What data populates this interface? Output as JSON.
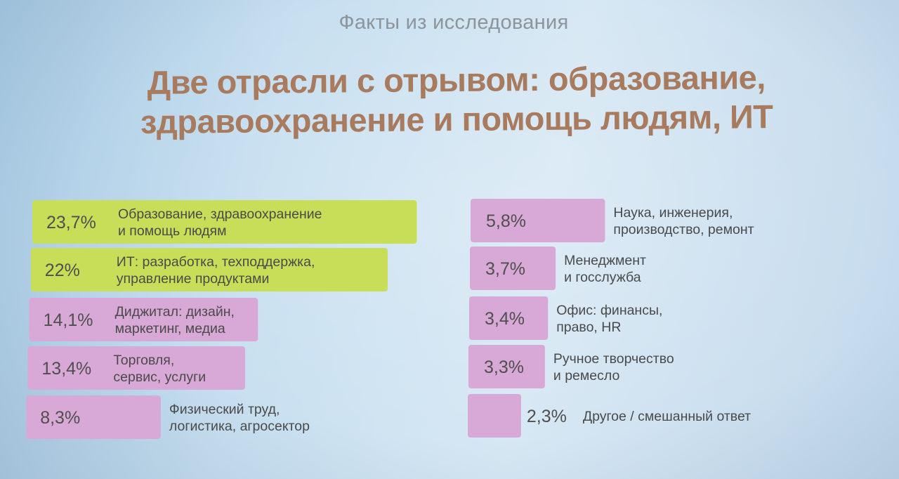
{
  "slide": {
    "kicker": "Факты из исследования",
    "headline_line1": "Две отрасли с отрывом: образование,",
    "headline_line2": "здравоохранение и помощь людям, ИТ"
  },
  "colors": {
    "highlight_bar": "#c9de58",
    "default_bar": "#d8a9d6",
    "headline": "#a87a5e",
    "kicker": "#8d949b"
  },
  "chart_data": {
    "type": "bar",
    "orientation": "horizontal",
    "unit": "%",
    "columns": [
      {
        "bars": [
          {
            "value": 23.7,
            "value_label": "23,7%",
            "label_lines": [
              "Образование, здравоохранение",
              "и помощь людям"
            ],
            "highlight": true
          },
          {
            "value": 22,
            "value_label": "22%",
            "label_lines": [
              "ИТ: разработка, техподдержка,",
              "управление продуктами"
            ],
            "highlight": true
          },
          {
            "value": 14.1,
            "value_label": "14,1%",
            "label_lines": [
              "Диджитал: дизайн,",
              "маркетинг, медиа"
            ],
            "highlight": false
          },
          {
            "value": 13.4,
            "value_label": "13,4%",
            "label_lines": [
              "Торговля,",
              "сервис, услуги"
            ],
            "highlight": false
          },
          {
            "value": 8.3,
            "value_label": "8,3%",
            "label_lines": [
              "Физический труд,",
              "логистика, агросектор"
            ],
            "highlight": false
          }
        ]
      },
      {
        "bars": [
          {
            "value": 5.8,
            "value_label": "5,8%",
            "label_lines": [
              "Наука, инженерия,",
              "производство, ремонт"
            ],
            "highlight": false
          },
          {
            "value": 3.7,
            "value_label": "3,7%",
            "label_lines": [
              "Менеджмент",
              "и госслужба"
            ],
            "highlight": false
          },
          {
            "value": 3.4,
            "value_label": "3,4%",
            "label_lines": [
              "Офис: финансы,",
              "право, HR"
            ],
            "highlight": false
          },
          {
            "value": 3.3,
            "value_label": "3,3%",
            "label_lines": [
              "Ручное творчество",
              "и ремесло"
            ],
            "highlight": false
          },
          {
            "value": 2.3,
            "value_label": "2,3%",
            "label_lines": [
              "Другое / смешанный ответ"
            ],
            "highlight": false
          }
        ]
      }
    ]
  }
}
